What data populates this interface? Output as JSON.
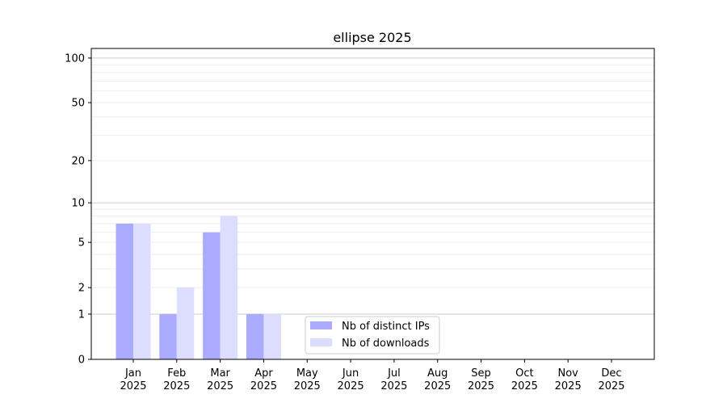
{
  "chart_data": {
    "type": "bar",
    "title": "ellipse 2025",
    "xlabel": "",
    "ylabel": "",
    "yscale": "log(1+y)",
    "ylim": [
      0,
      116
    ],
    "yticks": [
      0,
      1,
      2,
      5,
      10,
      20,
      50,
      100
    ],
    "grid": true,
    "legend_placement": "lower-center",
    "categories": [
      "Jan\n2025",
      "Feb\n2025",
      "Mar\n2025",
      "Apr\n2025",
      "May\n2025",
      "Jun\n2025",
      "Jul\n2025",
      "Aug\n2025",
      "Sep\n2025",
      "Oct\n2025",
      "Nov\n2025",
      "Dec\n2025"
    ],
    "series": [
      {
        "name": "Nb of distinct IPs",
        "color": "#aaaaff",
        "values": [
          7,
          1,
          6,
          1,
          0,
          0,
          0,
          0,
          0,
          0,
          0,
          0
        ]
      },
      {
        "name": "Nb of downloads",
        "color": "#ddddff",
        "values": [
          7,
          2,
          8,
          1,
          0,
          0,
          0,
          0,
          0,
          0,
          0,
          0
        ]
      }
    ]
  }
}
